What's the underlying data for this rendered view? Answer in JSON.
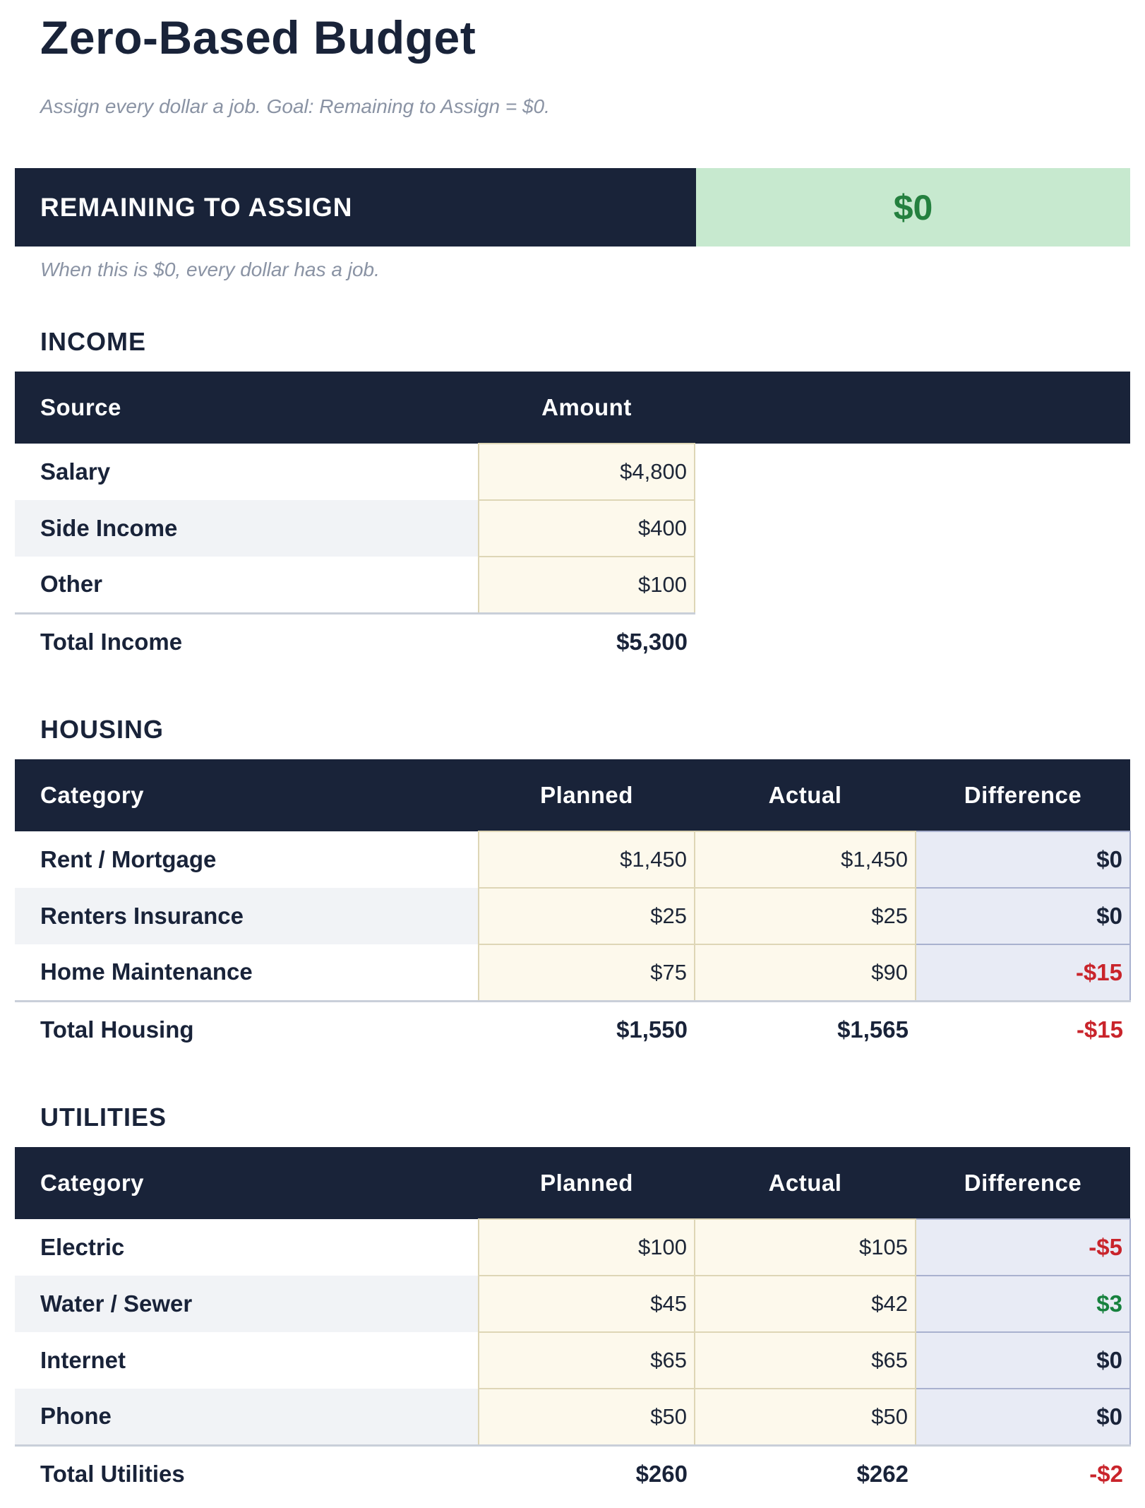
{
  "header": {
    "title": "Zero-Based Budget",
    "subtitle": "Assign every dollar a job. Goal: Remaining to Assign = $0."
  },
  "remaining": {
    "label": "REMAINING TO ASSIGN",
    "value": "$0",
    "note": "When this is $0, every dollar has a job."
  },
  "colors": {
    "navy": "#192339",
    "green_badge_bg": "#c7e9cf",
    "green_badge_text": "#24803f",
    "input_cell_bg": "#fdf9ec",
    "input_cell_border": "#ded6b6",
    "difference_cell_bg": "#e8ebf5",
    "difference_cell_border": "#a9b1cf",
    "negative_value": "#c9242b",
    "positive_value": "#17813e",
    "row_stripe": "#f1f3f6",
    "muted_text": "#8a93a4"
  },
  "sections": [
    {
      "id": "income",
      "heading": "INCOME",
      "columns": [
        "Source",
        "Amount"
      ],
      "rows": [
        {
          "label": "Salary",
          "values": [
            "$4,800"
          ]
        },
        {
          "label": "Side Income",
          "values": [
            "$400"
          ]
        },
        {
          "label": "Other",
          "values": [
            "$100"
          ]
        }
      ],
      "total": {
        "label": "Total Income",
        "values": [
          "$5,300"
        ]
      }
    },
    {
      "id": "housing",
      "heading": "HOUSING",
      "columns": [
        "Category",
        "Planned",
        "Actual",
        "Difference"
      ],
      "rows": [
        {
          "label": "Rent / Mortgage",
          "values": [
            "$1,450",
            "$1,450",
            "$0"
          ]
        },
        {
          "label": "Renters Insurance",
          "values": [
            "$25",
            "$25",
            "$0"
          ]
        },
        {
          "label": "Home Maintenance",
          "values": [
            "$75",
            "$90",
            "-$15"
          ]
        }
      ],
      "total": {
        "label": "Total Housing",
        "values": [
          "$1,550",
          "$1,565",
          "-$15"
        ]
      }
    },
    {
      "id": "utilities",
      "heading": "UTILITIES",
      "columns": [
        "Category",
        "Planned",
        "Actual",
        "Difference"
      ],
      "rows": [
        {
          "label": "Electric",
          "values": [
            "$100",
            "$105",
            "-$5"
          ]
        },
        {
          "label": "Water / Sewer",
          "values": [
            "$45",
            "$42",
            "$3"
          ]
        },
        {
          "label": "Internet",
          "values": [
            "$65",
            "$65",
            "$0"
          ]
        },
        {
          "label": "Phone",
          "values": [
            "$50",
            "$50",
            "$0"
          ]
        }
      ],
      "total": {
        "label": "Total Utilities",
        "values": [
          "$260",
          "$262",
          "-$2"
        ]
      }
    }
  ]
}
